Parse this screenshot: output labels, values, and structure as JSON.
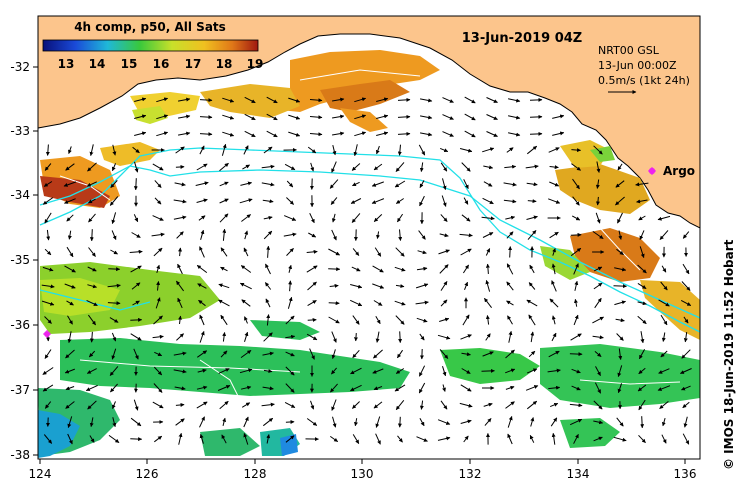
{
  "title": "13-Jun-2019 04Z",
  "colorbar": {
    "label": "4h comp, p50, All Sats",
    "ticks": [
      "13",
      "14",
      "15",
      "16",
      "17",
      "18",
      "19"
    ]
  },
  "info": {
    "line1": "NRT00 GSL",
    "line2": "13-Jun 00:00Z",
    "line3": "0.5m/s (1kt 24h)"
  },
  "argo_label": "Argo",
  "credit": "© IMOS 18-Jun-2019 11:52 Hobart",
  "axes": {
    "lat_labels": [
      "-32",
      "-33",
      "-34",
      "-35",
      "-36",
      "-37",
      "-38"
    ],
    "lon_labels": [
      "124",
      "126",
      "128",
      "130",
      "132",
      "134",
      "136"
    ]
  },
  "colors": {
    "land": "#fcc58c",
    "coastline": "#000000",
    "cyan_contour": "#22e0e8",
    "argo": "#ee22ee"
  }
}
